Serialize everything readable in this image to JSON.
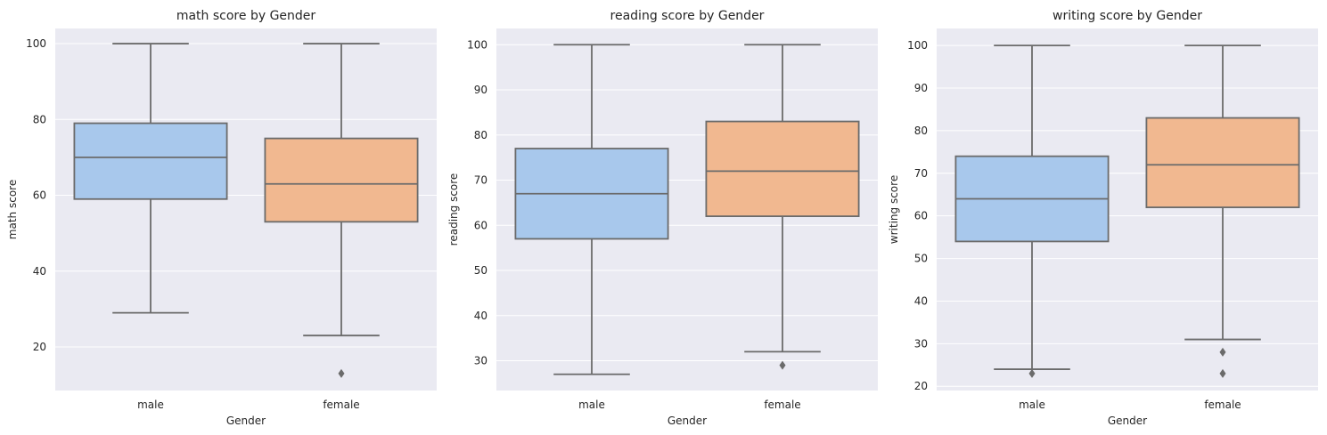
{
  "colors": {
    "panel_bg": "#eaeaf2",
    "grid": "#ffffff",
    "line": "#6b6b6b",
    "male": "#a8c8ec",
    "female": "#f1b890"
  },
  "chart_data": [
    {
      "type": "box",
      "title": "math score by Gender",
      "xlabel": "Gender",
      "ylabel": "math score",
      "categories": [
        "male",
        "female"
      ],
      "ylim": [
        8.5,
        104
      ],
      "yticks": [
        20,
        40,
        60,
        80,
        100
      ],
      "ytick_labels": [
        "20",
        "40",
        "60",
        "80",
        "100"
      ],
      "boxes": [
        {
          "name": "male",
          "whisker_low": 29,
          "q1": 59,
          "median": 70,
          "q3": 79,
          "whisker_high": 100,
          "outliers": []
        },
        {
          "name": "female",
          "whisker_low": 23,
          "q1": 53,
          "median": 63,
          "q3": 75,
          "whisker_high": 100,
          "outliers": [
            13
          ]
        }
      ]
    },
    {
      "type": "box",
      "title": "reading score by Gender",
      "xlabel": "Gender",
      "ylabel": "reading score",
      "categories": [
        "male",
        "female"
      ],
      "ylim": [
        23.4,
        103.6
      ],
      "yticks": [
        30,
        40,
        50,
        60,
        70,
        80,
        90,
        100
      ],
      "ytick_labels": [
        "30",
        "40",
        "50",
        "60",
        "70",
        "80",
        "90",
        "100"
      ],
      "boxes": [
        {
          "name": "male",
          "whisker_low": 27,
          "q1": 57,
          "median": 67,
          "q3": 77,
          "whisker_high": 100,
          "outliers": []
        },
        {
          "name": "female",
          "whisker_low": 32,
          "q1": 62,
          "median": 72,
          "q3": 83,
          "whisker_high": 100,
          "outliers": [
            29
          ]
        }
      ]
    },
    {
      "type": "box",
      "title": "writing score by Gender",
      "xlabel": "Gender",
      "ylabel": "writing score",
      "categories": [
        "male",
        "female"
      ],
      "ylim": [
        19,
        104
      ],
      "yticks": [
        20,
        30,
        40,
        50,
        60,
        70,
        80,
        90,
        100
      ],
      "ytick_labels": [
        "20",
        "30",
        "40",
        "50",
        "60",
        "70",
        "80",
        "90",
        "100"
      ],
      "boxes": [
        {
          "name": "male",
          "whisker_low": 24,
          "q1": 54,
          "median": 64,
          "q3": 74,
          "whisker_high": 100,
          "outliers": [
            23
          ]
        },
        {
          "name": "female",
          "whisker_low": 31,
          "q1": 62,
          "median": 72,
          "q3": 83,
          "whisker_high": 100,
          "outliers": [
            28,
            23
          ]
        }
      ]
    }
  ]
}
